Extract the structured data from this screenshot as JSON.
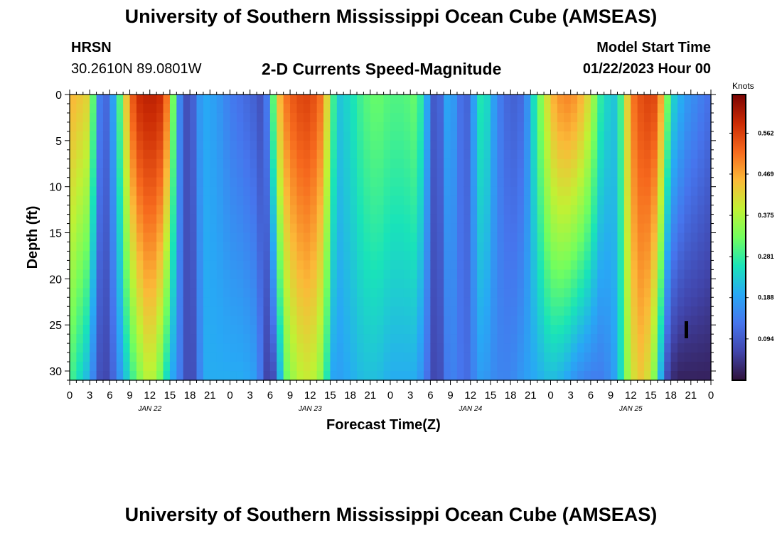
{
  "page": {
    "title": "University of Southern Mississippi Ocean Cube (AMSEAS)",
    "station_name": "HRSN",
    "station_coords": "30.2610N  89.0801W",
    "subtitle": "2-D Currents Speed-Magnitude",
    "model_start_label": "Model Start Time",
    "model_start_value": "01/22/2023 Hour 00",
    "bottom_title": "University of Southern Mississippi Ocean Cube (AMSEAS)"
  },
  "chart_data": {
    "type": "heatmap",
    "title": "2-D Currents Speed-Magnitude",
    "xlabel": "Forecast Time(Z)",
    "ylabel": "Depth (ft)",
    "x_range_hours": [
      0,
      96
    ],
    "y_range_ft": [
      0,
      31
    ],
    "y_reversed": true,
    "y_ticks": [
      0,
      5,
      10,
      15,
      20,
      25,
      30
    ],
    "x_tick_labels": [
      "0",
      "3",
      "6",
      "9",
      "12",
      "15",
      "18",
      "21",
      "0",
      "3",
      "6",
      "9",
      "12",
      "15",
      "18",
      "21",
      "0",
      "3",
      "6",
      "9",
      "12",
      "15",
      "18",
      "21",
      "0",
      "3",
      "6",
      "9",
      "12",
      "15",
      "18",
      "21",
      "0"
    ],
    "date_labels": [
      {
        "hour": 12,
        "text": "JAN 22"
      },
      {
        "hour": 36,
        "text": "JAN 23"
      },
      {
        "hour": 60,
        "text": "JAN 24"
      },
      {
        "hour": 84,
        "text": "JAN 25"
      }
    ],
    "colorbar": {
      "label": "Knots",
      "range": [
        0,
        0.65
      ],
      "ticks": [
        0.094,
        0.188,
        0.281,
        0.375,
        0.469,
        0.562
      ],
      "tick_labels": [
        "0.094",
        "0.188",
        "0.281",
        "0.375",
        "0.469",
        "0.562"
      ]
    },
    "profiles": {
      "hours": [
        0,
        3,
        4,
        5,
        6,
        7,
        8,
        9,
        10,
        12,
        14,
        15,
        16,
        17,
        18,
        19,
        20,
        22,
        24,
        26,
        28,
        29,
        30,
        31,
        32,
        34,
        36,
        38,
        39,
        40,
        42,
        44,
        46,
        48,
        50,
        52,
        54,
        55,
        56,
        57,
        58,
        59,
        60,
        61,
        62,
        64,
        66,
        68,
        70,
        72,
        74,
        76,
        78,
        79,
        80,
        82,
        84,
        86,
        88,
        89,
        90,
        91,
        92,
        94,
        96
      ],
      "speed_surface_knots": [
        0.46,
        0.42,
        0.2,
        0.08,
        0.15,
        0.22,
        0.38,
        0.5,
        0.58,
        0.6,
        0.58,
        0.45,
        0.2,
        0.1,
        0.06,
        0.15,
        0.2,
        0.18,
        0.14,
        0.12,
        0.1,
        0.07,
        0.2,
        0.42,
        0.5,
        0.55,
        0.56,
        0.5,
        0.35,
        0.22,
        0.25,
        0.3,
        0.32,
        0.3,
        0.3,
        0.32,
        0.15,
        0.04,
        0.18,
        0.2,
        0.15,
        0.1,
        0.12,
        0.25,
        0.28,
        0.15,
        0.1,
        0.12,
        0.3,
        0.45,
        0.5,
        0.48,
        0.4,
        0.3,
        0.25,
        0.22,
        0.5,
        0.56,
        0.55,
        0.4,
        0.25,
        0.22,
        0.18,
        0.15,
        0.12
      ],
      "speed_bottom_knots": [
        0.3,
        0.2,
        0.1,
        0.06,
        0.08,
        0.14,
        0.2,
        0.26,
        0.32,
        0.4,
        0.3,
        0.2,
        0.18,
        0.1,
        0.06,
        0.1,
        0.2,
        0.2,
        0.2,
        0.2,
        0.18,
        0.1,
        0.03,
        0.12,
        0.3,
        0.38,
        0.4,
        0.33,
        0.2,
        0.18,
        0.2,
        0.22,
        0.22,
        0.2,
        0.2,
        0.2,
        0.1,
        0.04,
        0.12,
        0.15,
        0.14,
        0.12,
        0.12,
        0.18,
        0.18,
        0.15,
        0.15,
        0.18,
        0.2,
        0.22,
        0.2,
        0.16,
        0.14,
        0.14,
        0.14,
        0.2,
        0.4,
        0.45,
        0.3,
        0.1,
        0.04,
        0.02,
        0.02,
        0.02,
        0.02
      ]
    }
  }
}
